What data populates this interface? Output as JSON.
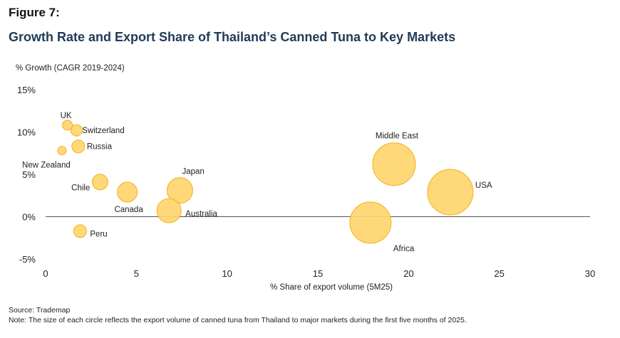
{
  "figure_label": "Figure 7:",
  "title": "Growth Rate and Export Share of Thailand’s Canned Tuna to Key Markets",
  "source": "Source: Trademap",
  "note": "Note: The size of each circle reflects the export volume of canned tuna from Thailand to major markets during the first five months of 2025.",
  "chart_data": {
    "type": "scatter",
    "title": "Growth Rate and Export Share of Thailand’s Canned Tuna to Key Markets",
    "xlabel": "% Share of export volume (5M25)",
    "ylabel": "% Growth (CAGR 2019-2024)",
    "xlim": [
      0,
      30
    ],
    "ylim": [
      -5,
      15
    ],
    "x_ticks": [
      "0",
      "5",
      "10",
      "15",
      "20",
      "25",
      "30"
    ],
    "y_ticks": [
      "15%",
      "10%",
      "5%",
      "0%",
      "-5%"
    ],
    "bubble_color": "#FFD56E",
    "bubble_stroke": "#F2B01E",
    "points": [
      {
        "label": "UK",
        "x": 1.2,
        "y": 10.8
      },
      {
        "label": "Switzerland",
        "x": 1.7,
        "y": 10.2
      },
      {
        "label": "Russia",
        "x": 1.8,
        "y": 8.3
      },
      {
        "label": "New Zealand",
        "x": 0.9,
        "y": 7.8
      },
      {
        "label": "Chile",
        "x": 3.0,
        "y": 4.1
      },
      {
        "label": "Canada",
        "x": 4.5,
        "y": 2.9
      },
      {
        "label": "Japan",
        "x": 7.4,
        "y": 3.1
      },
      {
        "label": "Australia",
        "x": 6.8,
        "y": 0.7
      },
      {
        "label": "Peru",
        "x": 1.9,
        "y": -1.7
      },
      {
        "label": "Middle East",
        "x": 19.2,
        "y": 6.2
      },
      {
        "label": "USA",
        "x": 22.3,
        "y": 2.9
      },
      {
        "label": "Africa",
        "x": 17.9,
        "y": -0.7
      }
    ]
  }
}
